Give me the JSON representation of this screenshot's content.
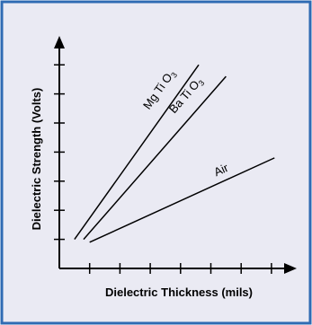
{
  "chart_data": {
    "type": "line",
    "title": "",
    "xlabel": "Dielectric Thickness (mils)",
    "ylabel": "Dielectric Strength (Volts)",
    "x_ticks": [
      1,
      2,
      3,
      4,
      5,
      6,
      7
    ],
    "y_ticks": [
      1,
      2,
      3,
      4,
      5,
      6,
      7
    ],
    "xlim": [
      0,
      7.7
    ],
    "ylim": [
      0,
      7.9
    ],
    "grid": false,
    "legend": "none",
    "series": [
      {
        "name": "Mg Ti O3",
        "label_main": "Mg Ti O",
        "label_sub": "3",
        "x": [
          0.5,
          4.6
        ],
        "y": [
          1.0,
          7.0
        ]
      },
      {
        "name": "Ba Ti O3",
        "label_main": "Ba Ti O",
        "label_sub": "3",
        "x": [
          0.8,
          5.5
        ],
        "y": [
          1.0,
          6.6
        ]
      },
      {
        "name": "Air",
        "label_main": "Air",
        "label_sub": "",
        "x": [
          1.0,
          7.1
        ],
        "y": [
          0.9,
          3.8
        ]
      }
    ]
  },
  "colors": {
    "frame_border": "#2f6bb3",
    "panel_background": "#eaeaf3",
    "axis": "#000000",
    "series_line": "#000000"
  }
}
